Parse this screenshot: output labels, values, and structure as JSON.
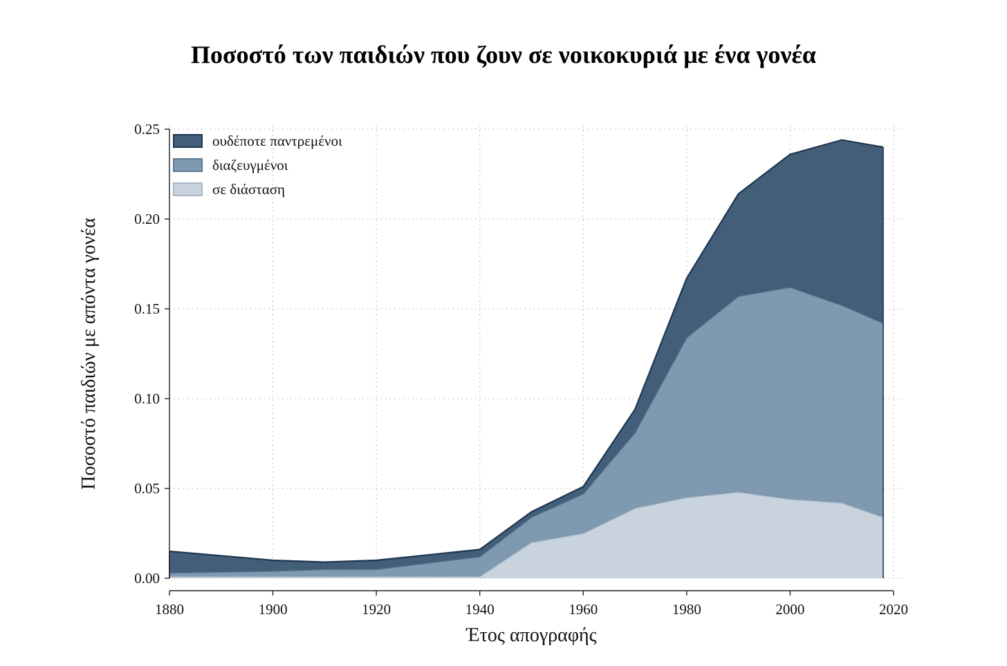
{
  "chart_data": {
    "type": "area",
    "stacked": true,
    "title": "Ποσοστό των παιδιών που ζουν σε νοικοκυριά με ένα γονέα",
    "xlabel": "Έτος απογραφής",
    "ylabel": "Ποσοστό παιδιών με απόντα γονέα",
    "xlim": [
      1880,
      2020
    ],
    "ylim": [
      0,
      0.25
    ],
    "xticks": [
      "1880",
      "1900",
      "1920",
      "1940",
      "1960",
      "1980",
      "2000",
      "2020"
    ],
    "yticks": [
      "0.00",
      "0.05",
      "0.10",
      "0.15",
      "0.20",
      "0.25"
    ],
    "grid": true,
    "legend_position": "top-left",
    "x": [
      1880,
      1900,
      1910,
      1920,
      1940,
      1950,
      1960,
      1970,
      1980,
      1990,
      2000,
      2010,
      2018
    ],
    "series": [
      {
        "name": "σε διάσταση",
        "color": "#c8d3de",
        "edge": "#a9b8c7",
        "values": [
          0.001,
          0.001,
          0.001,
          0.001,
          0.001,
          0.02,
          0.025,
          0.039,
          0.045,
          0.048,
          0.044,
          0.042,
          0.034
        ]
      },
      {
        "name": "διαζευγμένοι",
        "color": "#7f99b0",
        "edge": "#5e7a94",
        "values": [
          0.002,
          0.003,
          0.004,
          0.004,
          0.011,
          0.014,
          0.022,
          0.042,
          0.089,
          0.109,
          0.118,
          0.11,
          0.108
        ]
      },
      {
        "name": "ουδέποτε παντρεμένοι",
        "color": "#425e79",
        "edge": "#1f3550",
        "values": [
          0.012,
          0.006,
          0.004,
          0.005,
          0.004,
          0.003,
          0.004,
          0.013,
          0.033,
          0.057,
          0.074,
          0.092,
          0.098
        ]
      }
    ],
    "legend_order": [
      "ουδέποτε παντρεμένοι",
      "διαζευγμένοι",
      "σε διάσταση"
    ]
  }
}
